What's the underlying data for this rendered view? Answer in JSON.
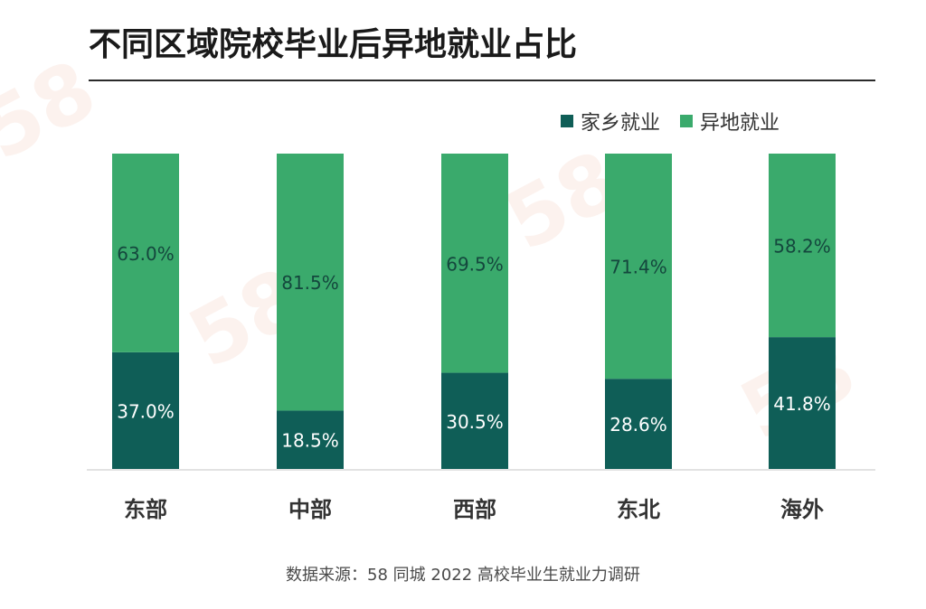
{
  "title": "不同区域院校毕业后异地就业占比",
  "legend": {
    "items": [
      {
        "label": "家乡就业",
        "color": "#0f5e57"
      },
      {
        "label": "异地就业",
        "color": "#3aaa6c"
      }
    ]
  },
  "source": "数据来源：58 同城 2022 高校毕业生就业力调研",
  "chart_data": {
    "type": "bar",
    "stacked": true,
    "categories": [
      "东部",
      "中部",
      "西部",
      "东北",
      "海外"
    ],
    "series": [
      {
        "name": "家乡就业",
        "color": "#0f5e57",
        "values": [
          37.0,
          18.5,
          30.5,
          28.6,
          41.8
        ],
        "labels": [
          "37.0%",
          "18.5%",
          "30.5%",
          "28.6%",
          "41.8%"
        ]
      },
      {
        "name": "异地就业",
        "color": "#3aaa6c",
        "values": [
          63.0,
          81.5,
          69.5,
          71.4,
          58.2
        ],
        "labels": [
          "63.0%",
          "81.5%",
          "69.5%",
          "71.4%",
          "58.2%"
        ]
      }
    ],
    "ylim": [
      0,
      100
    ],
    "grid": false,
    "legend_position": "top-right"
  }
}
